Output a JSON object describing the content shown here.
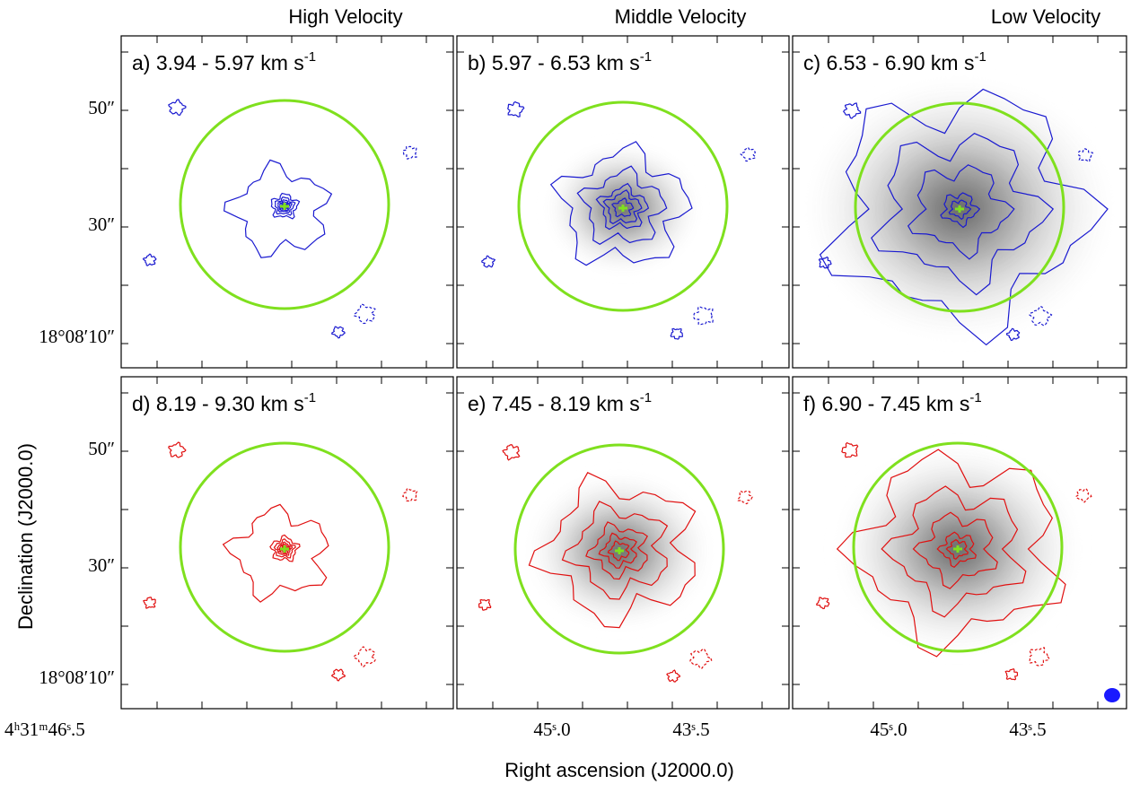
{
  "columns": [
    "High Velocity",
    "Middle Velocity",
    "Low Velocity"
  ],
  "panels": [
    {
      "label": "a) 3.94 - 5.97 km s",
      "sup": "-1"
    },
    {
      "label": "b) 5.97 - 6.53 km s",
      "sup": "-1"
    },
    {
      "label": "c) 6.53 - 6.90 km s",
      "sup": "-1"
    },
    {
      "label": "d) 8.19 - 9.30 km s",
      "sup": "-1"
    },
    {
      "label": "e) 7.45 - 8.19 km s",
      "sup": "-1"
    },
    {
      "label": "f) 6.90 - 7.45 km s",
      "sup": "-1"
    }
  ],
  "y_tick_labels": [
    "50″",
    "30″",
    "18°08′10″"
  ],
  "x_tick_labels": [
    "4ʰ31ᵐ46ˢ.5",
    "45ˢ.0",
    "43ˢ.5"
  ],
  "y_axis_title": "Declination (J2000.0)",
  "x_axis_title": "Right ascension (J2000.0)"
}
